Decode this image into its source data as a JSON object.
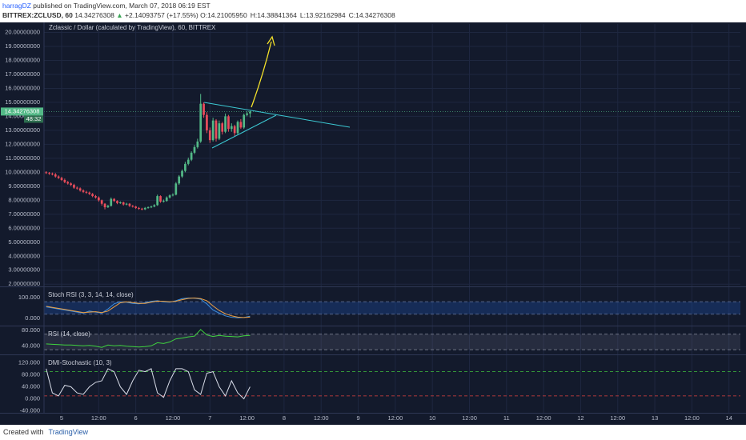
{
  "header": {
    "author": "harragDZ",
    "published": "published on TradingView.com, March 07, 2018 06:19 EST",
    "symbol": "BITTREX:ZCLUSD, 60",
    "last": "14.34276308",
    "arrow": "▲",
    "change": "+2.14093757 (+17.55%)",
    "ohlc": [
      {
        "label": "O:",
        "value": "14.21005950"
      },
      {
        "label": "H:",
        "value": "14.38841364"
      },
      {
        "label": "L:",
        "value": "13.92162984"
      },
      {
        "label": "C:",
        "value": "14.34276308"
      }
    ]
  },
  "footer": {
    "created": "Created with",
    "brand": "TradingView"
  },
  "chart_data": [
    {
      "type": "candlestick",
      "title": "Zclassic / Dollar (calculated by TradingView), 60, BITTREX",
      "x": [
        -5,
        -4,
        -3,
        -2,
        -1,
        0,
        1,
        2,
        3,
        4,
        5,
        6,
        7,
        8,
        9,
        10,
        11,
        12,
        13,
        14,
        15,
        16,
        17,
        18,
        19,
        20,
        21,
        22,
        23,
        24,
        25,
        26,
        27,
        28,
        29,
        30,
        31,
        32,
        33,
        34,
        35,
        36,
        37,
        38,
        39,
        40,
        41,
        42,
        43,
        44,
        45,
        46,
        47,
        48,
        49,
        50,
        51,
        52,
        53,
        54,
        55,
        56,
        57,
        58,
        59,
        60,
        61
      ],
      "open": [
        10.0,
        9.95,
        9.9,
        9.85,
        9.7,
        9.6,
        9.45,
        9.3,
        9.2,
        9.1,
        8.9,
        8.85,
        8.7,
        8.6,
        8.55,
        8.45,
        8.3,
        8.2,
        8.0,
        7.75,
        7.5,
        7.6,
        8.1,
        7.95,
        7.8,
        7.85,
        7.7,
        7.75,
        7.6,
        7.55,
        7.45,
        7.4,
        7.35,
        7.45,
        7.5,
        7.55,
        7.65,
        8.3,
        7.9,
        7.95,
        8.2,
        8.35,
        8.4,
        9.2,
        9.7,
        10.1,
        10.6,
        10.9,
        11.4,
        11.8,
        12.2,
        14.9,
        14.1,
        13.0,
        12.3,
        13.7,
        12.4,
        13.5,
        12.9,
        14.0,
        13.1,
        13.3,
        12.8,
        13.6,
        13.2,
        14.1,
        14.2100595
      ],
      "high": [
        10.08,
        10.02,
        9.98,
        9.95,
        9.78,
        9.68,
        9.55,
        9.38,
        9.28,
        9.18,
        8.98,
        8.92,
        8.78,
        8.68,
        8.62,
        8.52,
        8.38,
        8.28,
        8.05,
        7.8,
        7.68,
        8.2,
        8.15,
        8.0,
        7.92,
        7.9,
        7.82,
        7.8,
        7.66,
        7.6,
        7.52,
        7.46,
        7.52,
        7.56,
        7.62,
        7.72,
        8.4,
        8.35,
        8.05,
        8.28,
        8.42,
        8.5,
        9.3,
        9.8,
        10.2,
        10.75,
        11.05,
        11.5,
        11.95,
        12.4,
        15.6,
        15.0,
        14.3,
        13.2,
        13.9,
        13.8,
        13.7,
        13.6,
        14.2,
        14.1,
        13.5,
        13.4,
        13.7,
        13.8,
        14.2,
        14.35,
        14.38841364
      ],
      "low": [
        9.88,
        9.82,
        9.78,
        9.62,
        9.52,
        9.38,
        9.22,
        9.12,
        9.02,
        8.82,
        8.76,
        8.62,
        8.52,
        8.46,
        8.38,
        8.22,
        8.12,
        7.9,
        7.62,
        7.35,
        7.45,
        7.55,
        7.88,
        7.72,
        7.74,
        7.62,
        7.64,
        7.52,
        7.48,
        7.38,
        7.32,
        7.28,
        7.3,
        7.4,
        7.44,
        7.5,
        7.6,
        7.82,
        7.84,
        7.9,
        8.12,
        8.28,
        8.35,
        9.1,
        9.6,
        10.0,
        10.5,
        10.8,
        11.3,
        11.7,
        12.1,
        13.9,
        12.8,
        12.1,
        12.2,
        12.2,
        12.3,
        12.7,
        12.8,
        12.9,
        12.9,
        12.6,
        12.7,
        13.1,
        13.1,
        14.0,
        13.92162984
      ],
      "close": [
        9.95,
        9.9,
        9.85,
        9.7,
        9.6,
        9.45,
        9.3,
        9.2,
        9.1,
        8.9,
        8.85,
        8.7,
        8.6,
        8.55,
        8.45,
        8.3,
        8.2,
        8.0,
        7.75,
        7.5,
        7.6,
        8.1,
        7.95,
        7.8,
        7.85,
        7.7,
        7.75,
        7.6,
        7.55,
        7.45,
        7.4,
        7.35,
        7.45,
        7.5,
        7.55,
        7.65,
        8.3,
        7.9,
        7.95,
        8.2,
        8.35,
        8.4,
        9.2,
        9.7,
        10.1,
        10.6,
        10.9,
        11.4,
        11.8,
        12.2,
        14.9,
        14.1,
        13.0,
        12.3,
        13.7,
        12.4,
        13.5,
        12.9,
        14.0,
        13.1,
        13.3,
        12.8,
        13.6,
        13.2,
        14.1,
        14.2100595,
        14.34276308
      ],
      "up_color": "#53b987",
      "down_color": "#eb4d5c",
      "price_label": "14.34276308",
      "countdown": "48:32",
      "xlim": [
        -5.7,
        219.7
      ],
      "xticks": [
        {
          "value": 0,
          "label": "5"
        },
        {
          "value": 12,
          "label": "12:00"
        },
        {
          "value": 24,
          "label": "6"
        },
        {
          "value": 36,
          "label": "12:00"
        },
        {
          "value": 48,
          "label": "7"
        },
        {
          "value": 60,
          "label": "12:00"
        },
        {
          "value": 72,
          "label": "8"
        },
        {
          "value": 84,
          "label": "12:00"
        },
        {
          "value": 96,
          "label": "9"
        },
        {
          "value": 108,
          "label": "12:00"
        },
        {
          "value": 120,
          "label": "10"
        },
        {
          "value": 132,
          "label": "12:00"
        },
        {
          "value": 144,
          "label": "11"
        },
        {
          "value": 156,
          "label": "12:00"
        },
        {
          "value": 168,
          "label": "12"
        },
        {
          "value": 180,
          "label": "12:00"
        },
        {
          "value": 192,
          "label": "13"
        },
        {
          "value": 204,
          "label": "12:00"
        },
        {
          "value": 216,
          "label": "14"
        }
      ],
      "ylim": [
        1.9,
        20.6
      ],
      "yticks": [
        {
          "value": 2,
          "label": "2.00000000"
        },
        {
          "value": 3,
          "label": "3.00000000"
        },
        {
          "value": 4,
          "label": "4.00000000"
        },
        {
          "value": 5,
          "label": "5.00000000"
        },
        {
          "value": 6,
          "label": "6.00000000"
        },
        {
          "value": 7,
          "label": "7.00000000"
        },
        {
          "value": 8,
          "label": "8.00000000"
        },
        {
          "value": 9,
          "label": "9.00000000"
        },
        {
          "value": 10,
          "label": "10.00000000"
        },
        {
          "value": 11,
          "label": "11.00000000"
        },
        {
          "value": 12,
          "label": "12.00000000"
        },
        {
          "value": 13,
          "label": "13.00000000"
        },
        {
          "value": 14,
          "label": "14.00000000"
        },
        {
          "value": 15,
          "label": "15.00000000"
        },
        {
          "value": 16,
          "label": "16.00000000"
        },
        {
          "value": 17,
          "label": "17.00000000"
        },
        {
          "value": 18,
          "label": "18.00000000"
        },
        {
          "value": 19,
          "label": "19.00000000"
        },
        {
          "value": 20,
          "label": "20.00000000"
        }
      ],
      "grid": true
    },
    {
      "type": "line",
      "title": "Stoch RSI (3, 3, 14, 14, close)",
      "x": [
        -5,
        -3,
        -1,
        1,
        3,
        5,
        7,
        9,
        11,
        13,
        15,
        17,
        19,
        21,
        23,
        25,
        27,
        29,
        31,
        33,
        35,
        37,
        39,
        41,
        43,
        45,
        47,
        49,
        51,
        53,
        55,
        57,
        59,
        61
      ],
      "series": [
        {
          "color": "#3d8fe0",
          "values": [
            55,
            50,
            45,
            40,
            35,
            30,
            25,
            35,
            30,
            25,
            45,
            70,
            80,
            78,
            72,
            70,
            75,
            82,
            85,
            80,
            78,
            85,
            95,
            98,
            97,
            92,
            70,
            40,
            25,
            12,
            5,
            3,
            4,
            10
          ]
        },
        {
          "color": "#f0a040",
          "values": [
            58,
            53,
            48,
            43,
            38,
            33,
            28,
            30,
            32,
            28,
            35,
            55,
            75,
            80,
            76,
            72,
            72,
            78,
            83,
            82,
            80,
            82,
            90,
            96,
            98,
            95,
            85,
            60,
            38,
            22,
            12,
            6,
            4,
            6
          ]
        }
      ],
      "bands": [
        {
          "value": 80,
          "color": "#6a7aa0"
        },
        {
          "value": 20,
          "color": "#6a7aa0"
        }
      ],
      "band_fill": "rgba(30,80,170,0.35)",
      "ylim": [
        -31,
        146
      ],
      "yticks": [
        {
          "value": 100,
          "label": "100.000"
        },
        {
          "value": 0,
          "label": "0.000"
        }
      ]
    },
    {
      "type": "line",
      "title": "RSI (14, close)",
      "x": [
        -5,
        -3,
        -1,
        1,
        3,
        5,
        7,
        9,
        11,
        13,
        15,
        17,
        19,
        21,
        23,
        25,
        27,
        29,
        31,
        33,
        35,
        37,
        39,
        41,
        43,
        45,
        47,
        49,
        51,
        53,
        55,
        57,
        59,
        61
      ],
      "series": [
        {
          "color": "#3fd23f",
          "values": [
            45,
            44,
            43,
            42,
            42,
            41,
            40,
            41,
            39,
            36,
            42,
            40,
            41,
            39,
            38,
            37,
            38,
            40,
            48,
            46,
            50,
            58,
            60,
            63,
            65,
            82,
            68,
            64,
            67,
            65,
            64,
            63,
            66,
            67
          ]
        }
      ],
      "bands": [
        {
          "value": 70,
          "color": "#8a8fa0"
        },
        {
          "value": 30,
          "color": "#8a8fa0"
        }
      ],
      "band_fill": "rgba(130,130,150,0.18)",
      "ylim": [
        20,
        88
      ],
      "yticks": [
        {
          "value": 80,
          "label": "80.000"
        },
        {
          "value": 40,
          "label": "40.000"
        }
      ]
    },
    {
      "type": "line",
      "title": "DMI-Stochastic (10, 3)",
      "x": [
        -5,
        -3,
        -1,
        1,
        3,
        5,
        7,
        9,
        11,
        13,
        15,
        17,
        19,
        21,
        23,
        25,
        27,
        29,
        31,
        33,
        35,
        37,
        39,
        41,
        43,
        45,
        47,
        49,
        51,
        53,
        55,
        57,
        59,
        61
      ],
      "series": [
        {
          "color": "#d8dce8",
          "values": [
            100,
            20,
            10,
            45,
            40,
            20,
            15,
            40,
            55,
            60,
            100,
            90,
            40,
            15,
            60,
            95,
            90,
            100,
            20,
            5,
            60,
            100,
            100,
            90,
            30,
            15,
            85,
            90,
            40,
            10,
            60,
            20,
            0,
            40
          ]
        }
      ],
      "bands": [
        {
          "value": 90,
          "color": "#3fbf3f"
        },
        {
          "value": 10,
          "color": "#e04040"
        }
      ],
      "ylim": [
        -46,
        142
      ],
      "yticks": [
        {
          "value": 120,
          "label": "120.000"
        },
        {
          "value": 80,
          "label": "80.000"
        },
        {
          "value": 40,
          "label": "40.000"
        },
        {
          "value": 0,
          "label": "0.000"
        },
        {
          "value": -40,
          "label": "-40.000"
        }
      ]
    }
  ]
}
